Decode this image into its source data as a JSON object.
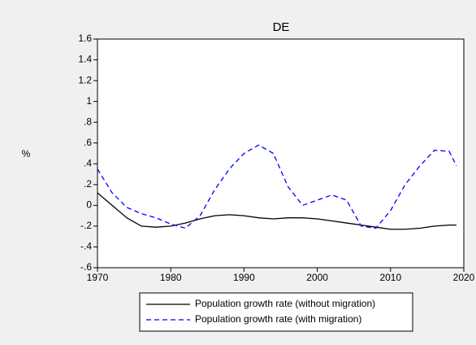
{
  "chart_data": {
    "type": "line",
    "title": "DE",
    "y_label": "%",
    "x": [
      1970,
      1972,
      1974,
      1976,
      1978,
      1980,
      1982,
      1984,
      1986,
      1988,
      1990,
      1992,
      1994,
      1996,
      1998,
      2000,
      2002,
      2004,
      2006,
      2008,
      2010,
      2012,
      2014,
      2016,
      2018,
      2019
    ],
    "series": [
      {
        "name": "Population growth rate (without migration)",
        "color": "#000000",
        "dash": false,
        "values": [
          0.12,
          0,
          -0.12,
          -0.2,
          -0.21,
          -0.2,
          -0.17,
          -0.13,
          -0.1,
          -0.09,
          -0.1,
          -0.12,
          -0.13,
          -0.12,
          -0.12,
          -0.13,
          -0.15,
          -0.17,
          -0.19,
          -0.21,
          -0.23,
          -0.23,
          -0.22,
          -0.2,
          -0.19,
          -0.19
        ]
      },
      {
        "name": "Population growth rate (with migration)",
        "color": "#0000ff",
        "dash": true,
        "values": [
          0.35,
          0.12,
          -0.02,
          -0.08,
          -0.12,
          -0.18,
          -0.22,
          -0.1,
          0.15,
          0.35,
          0.5,
          0.58,
          0.5,
          0.18,
          0,
          0.05,
          0.1,
          0.05,
          -0.2,
          -0.22,
          -0.05,
          0.2,
          0.38,
          0.53,
          0.52,
          0.38
        ]
      }
    ],
    "xlim": [
      1970,
      2020
    ],
    "xticks": [
      1970,
      1980,
      1990,
      2000,
      2010,
      2020
    ],
    "ylim": [
      -0.6,
      1.6
    ],
    "yticks": [
      {
        "value": -0.6,
        "label": "-.6"
      },
      {
        "value": -0.4,
        "label": "-.4"
      },
      {
        "value": -0.2,
        "label": "-.2"
      },
      0,
      {
        "value": 0.2,
        "label": ".2"
      },
      {
        "value": 0.4,
        "label": ".4"
      },
      {
        "value": 0.6,
        "label": ".6"
      },
      {
        "value": 0.8,
        "label": ".8"
      },
      1,
      1.2,
      1.4,
      1.6
    ]
  }
}
